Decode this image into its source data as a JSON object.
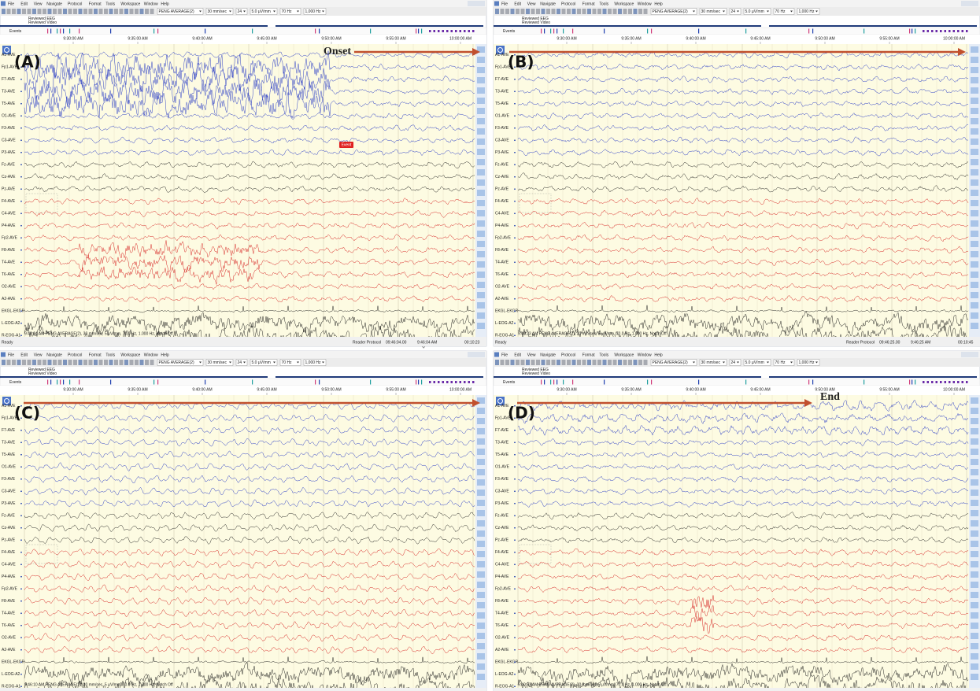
{
  "menu": [
    "File",
    "Edit",
    "View",
    "Navigate",
    "Protocol",
    "Format",
    "Tools",
    "Workspace",
    "Window",
    "Help"
  ],
  "toolbar": {
    "montage": "PENG AVERAGE(2)",
    "speed": "30 mm/sec",
    "count": "24",
    "sensitivity": "5.0 µV/mm",
    "lff": "70 Hz",
    "hff": "1,000 Hz"
  },
  "review_labels": [
    "Reviewed EEG",
    "Reviewed Video"
  ],
  "events_label": "Events",
  "time_labels": [
    "9:30:00 AM",
    "9:35:00 AM",
    "9:40:00 AM",
    "9:45:00 AM",
    "9:50:00 AM",
    "9:55:00 AM",
    "10:00:00 AM"
  ],
  "channels": [
    "A1-AVE",
    "Fp1-AVE",
    "F7-AVE",
    "T3-AVE",
    "T5-AVE",
    "O1-AVE",
    "F3-AVE",
    "C3-AVE",
    "P3-AVE",
    "Fz-AVE",
    "Cz-AVE",
    "Pz-AVE",
    "F4-AVE",
    "C4-AVE",
    "P4-AVE",
    "Fp2-AVE",
    "F8-AVE",
    "T4-AVE",
    "T6-AVE",
    "O2-AVE",
    "A2-AVE",
    "EKGL-EKGR",
    "L-EOG-A2",
    "R-EOG-A1"
  ],
  "ready": "Ready",
  "reader": "Reader Protocol",
  "panels": [
    {
      "label": "(A)",
      "annotation": "Onset",
      "event_tag": "Event",
      "status_left": "9:40:04 AM PENG AVERAGE(2), 30 mm/sec, 5 µV/mm, 70.0 Hz, 1.000 Hz, Notch Off",
      "status_times": [
        "09:46:04.00",
        "9:46:04 AM",
        "00:10:23"
      ]
    },
    {
      "label": "(B)",
      "status_left": "9:40:23 AM PENG AVERAGE(2), 30 mm/sec, 5 µV/mm, 70.0 Hz, 1.000 Hz, Notch Off",
      "status_times": [
        "09:46:25.00",
        "9:46:25 AM",
        "00:10:45"
      ]
    },
    {
      "label": "(C)",
      "status_left": "9:46:10 AM PENG AVERAGE(2), 30 mm/sec, 5 µV/mm, 70.0 Hz, 1.000 Hz, Notch Off",
      "status_times": [
        "09:46:18.50",
        "9:46:18 AM",
        "00:10:31"
      ]
    },
    {
      "label": "(D)",
      "annotation": "End",
      "status_left": "9:40:53 AM PENG AVERAGE(2), 30 mm/sec, 5 µV/mm, 70.0 Hz, 1.000 Hz, Notch Off",
      "status_times": [
        "09:46:52.00",
        "9:46:52 AM",
        "00:10:17"
      ]
    }
  ]
}
